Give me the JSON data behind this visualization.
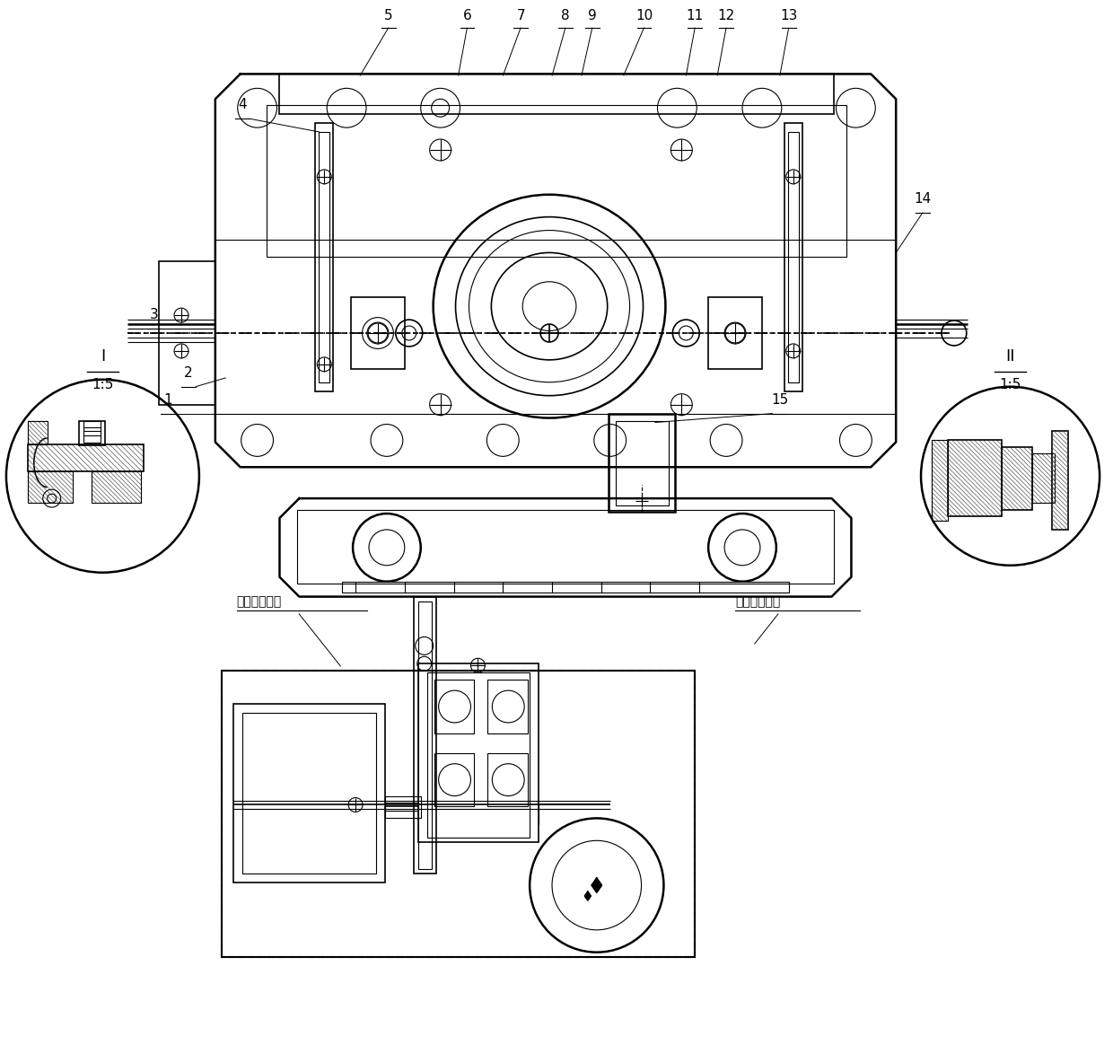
{
  "bg_color": "#ffffff",
  "line_color": "#000000",
  "figsize": [
    12.4,
    11.64
  ],
  "dpi": 100,
  "chinese_left": "精度标定部分",
  "chinese_right": "负载测试部分",
  "label_I": "I",
  "label_I_scale": "1:5",
  "label_II": "II",
  "label_II_scale": "1:5",
  "part_numbers": [
    "1",
    "2",
    "3",
    "4",
    "5",
    "6",
    "7",
    "8",
    "9",
    "10",
    "11",
    "12",
    "13",
    "14",
    "15"
  ]
}
